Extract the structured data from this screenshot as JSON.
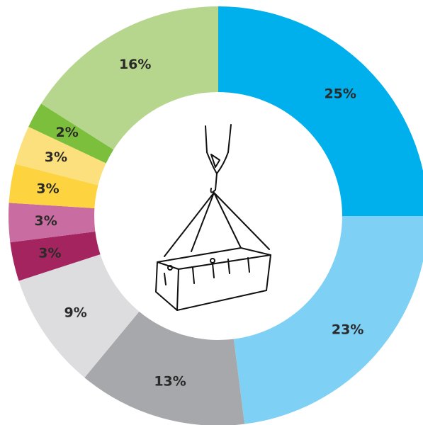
{
  "chart_data": {
    "type": "pie",
    "values": [
      25,
      23,
      13,
      9,
      3,
      3,
      3,
      3,
      2,
      16
    ],
    "value_labels": [
      "25%",
      "23%",
      "13%",
      "9%",
      "3%",
      "3%",
      "3%",
      "3%",
      "2%",
      "16%"
    ],
    "colors": [
      "#00b0ec",
      "#7fd0f5",
      "#a7a8ab",
      "#dddde0",
      "#a3245f",
      "#c96ca1",
      "#fdd440",
      "#fde07e",
      "#7cbf3d",
      "#b6d68d"
    ]
  }
}
